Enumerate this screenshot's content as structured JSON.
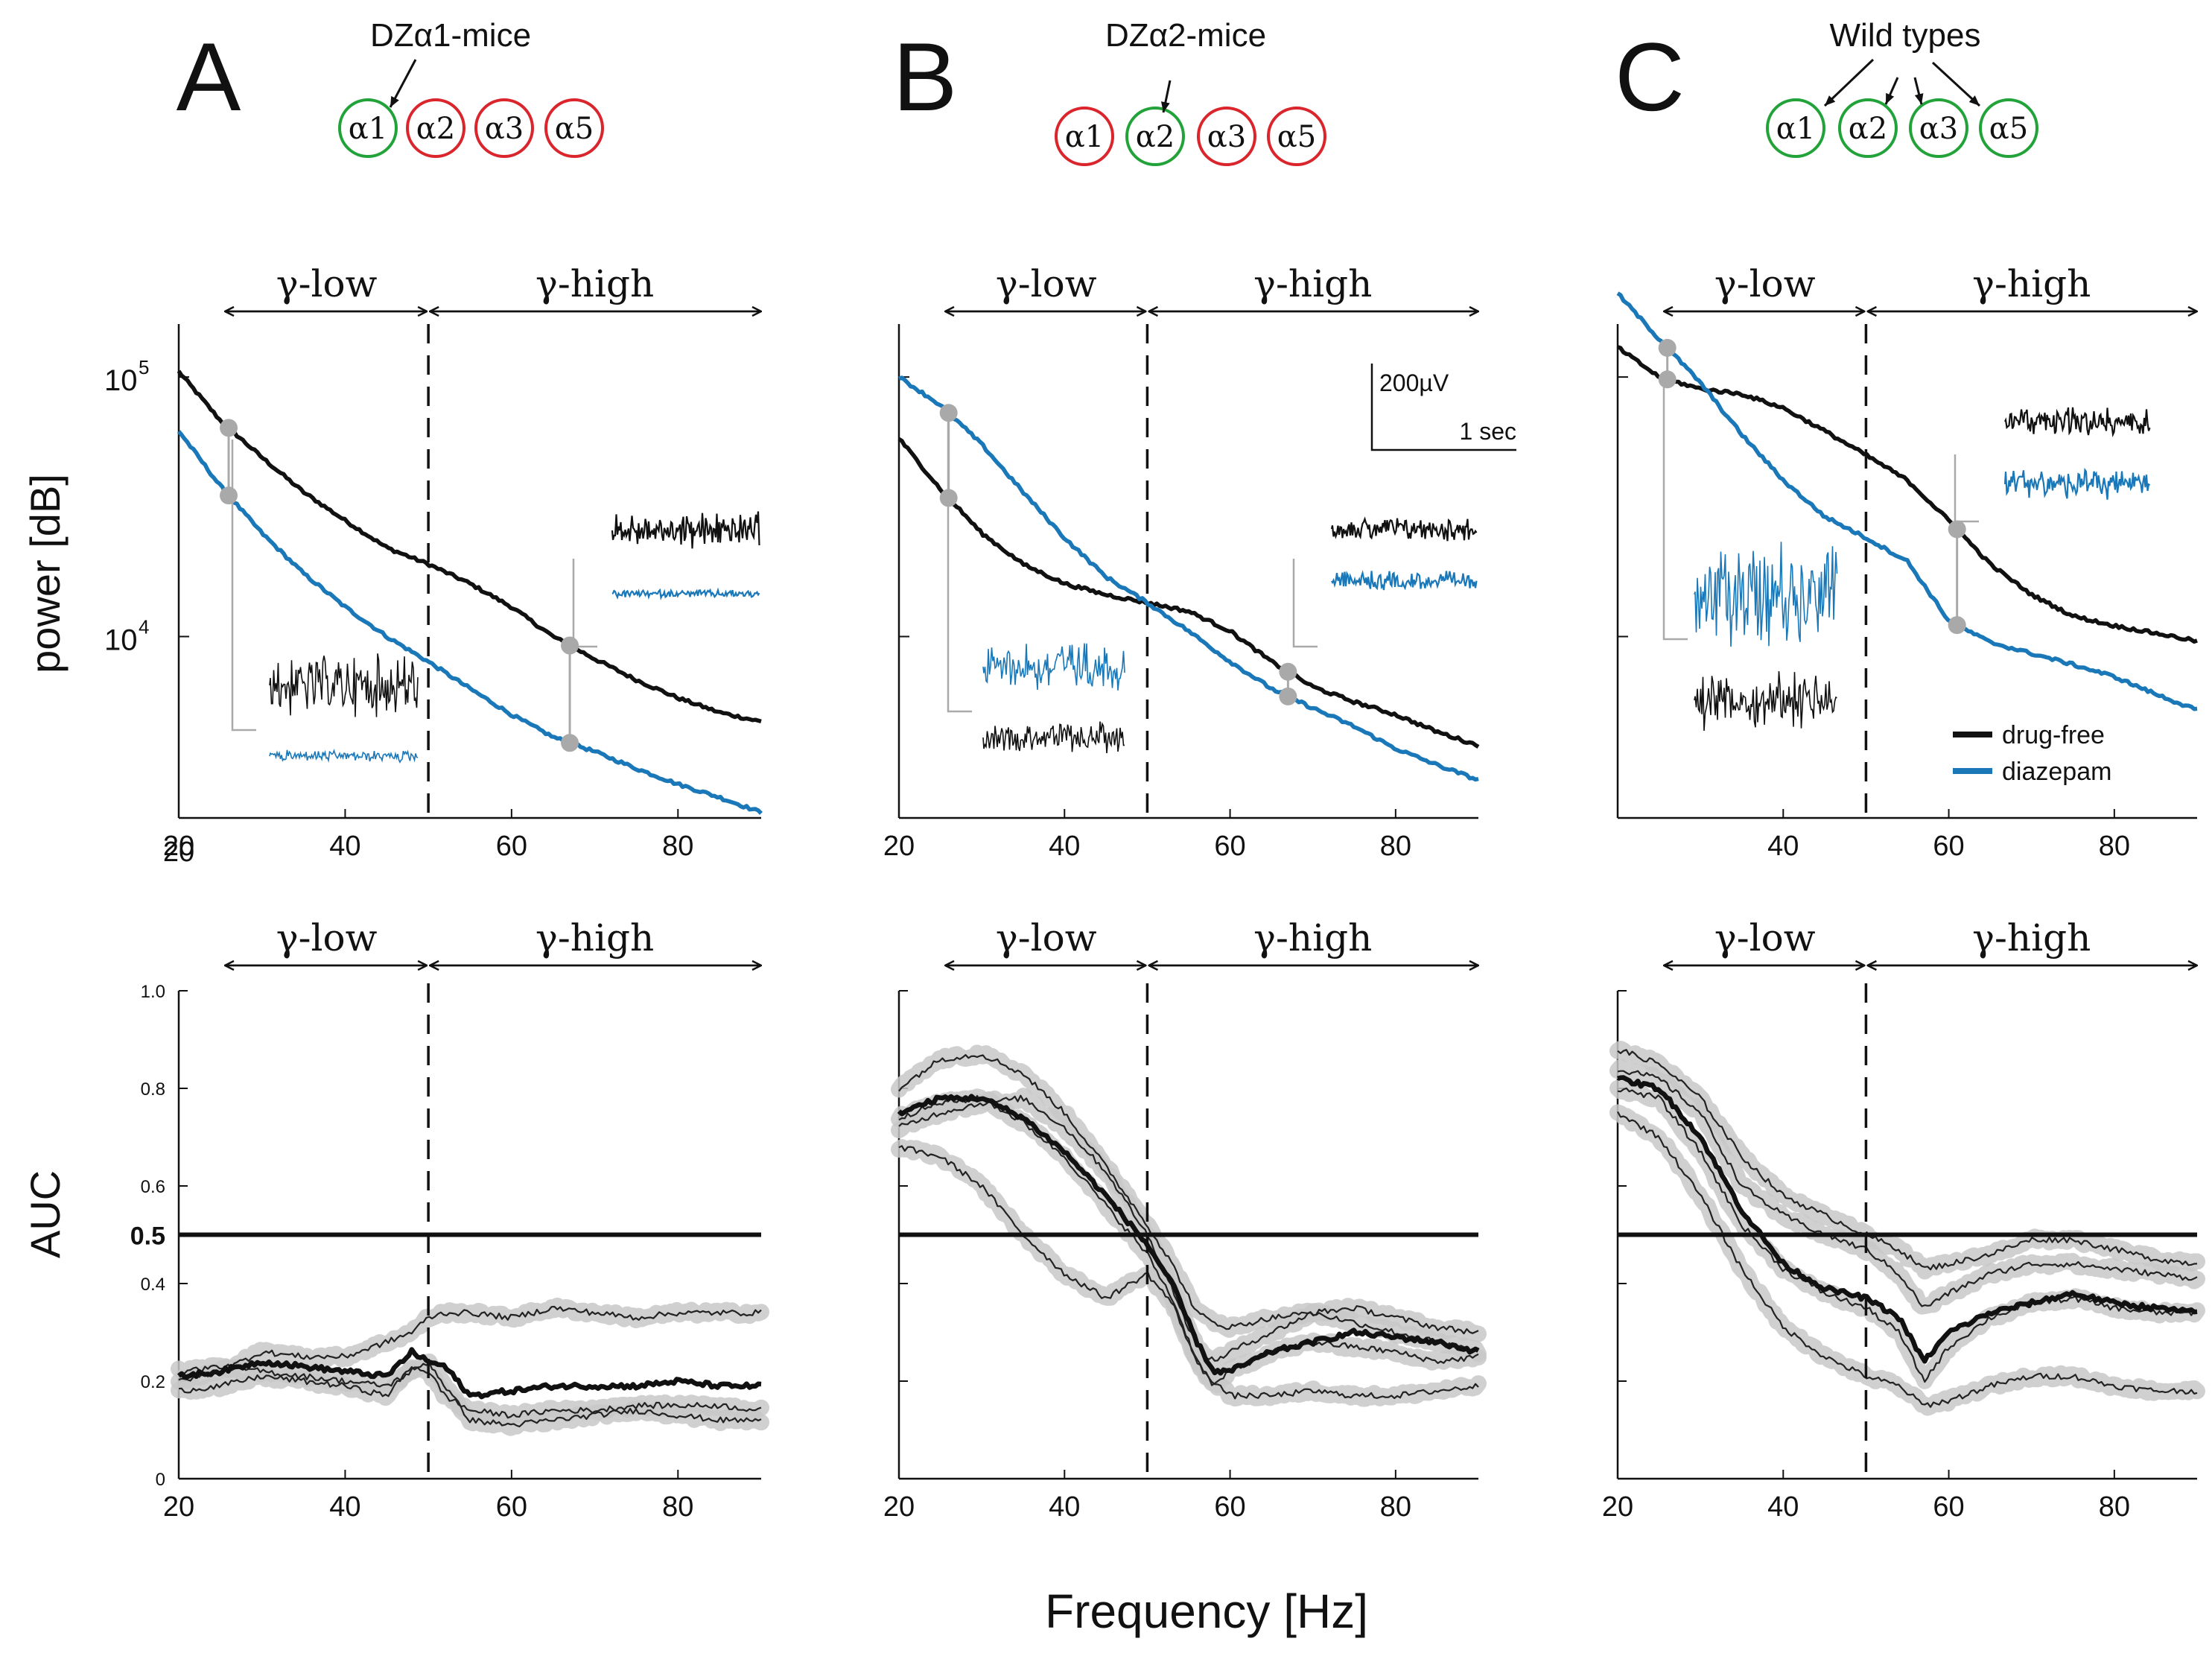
{
  "figure": {
    "xlabel": "Frequency [Hz]",
    "power_ylabel": "power [dB]",
    "auc_ylabel": "AUC",
    "band_low_label": "γ-low",
    "band_high_label": "γ-high",
    "auc_chance_label": "0.5",
    "stray_x_label": "20"
  },
  "legend": {
    "drug_free": "drug-free",
    "diazepam": "diazepam"
  },
  "colors": {
    "drug_free": "#111111",
    "diazepam": "#1a78b8",
    "sensitive": "#22a33a",
    "insensitive": "#d9252b",
    "marker": "#a9a9a9",
    "band": "#c8c8c8"
  },
  "scalebar": {
    "amplitude": "200µV",
    "time": "1 sec"
  },
  "panels": [
    {
      "letter": "A",
      "title": "DZα1-mice",
      "receptors": [
        {
          "label": "α1",
          "status": "sensitive"
        },
        {
          "label": "α2",
          "status": "insensitive"
        },
        {
          "label": "α3",
          "status": "insensitive"
        },
        {
          "label": "α5",
          "status": "insensitive"
        }
      ]
    },
    {
      "letter": "B",
      "title": "DZα2-mice",
      "receptors": [
        {
          "label": "α1",
          "status": "insensitive"
        },
        {
          "label": "α2",
          "status": "sensitive"
        },
        {
          "label": "α3",
          "status": "insensitive"
        },
        {
          "label": "α5",
          "status": "insensitive"
        }
      ]
    },
    {
      "letter": "C",
      "title": "Wild types",
      "receptors": [
        {
          "label": "α1",
          "status": "sensitive"
        },
        {
          "label": "α2",
          "status": "sensitive"
        },
        {
          "label": "α3",
          "status": "sensitive"
        },
        {
          "label": "α5",
          "status": "sensitive"
        }
      ]
    }
  ],
  "chart_data": [
    {
      "type": "line",
      "title": "A power spectrum",
      "xlabel": "Frequency [Hz]",
      "ylabel": "power [dB]",
      "xlim": [
        20,
        90
      ],
      "ylim": [
        2000,
        160000
      ],
      "yscale": "log",
      "x_ticks": [
        "20",
        "40",
        "60",
        "80"
      ],
      "y_ticks": [
        {
          "value": 100000,
          "base": "10",
          "exp": "5"
        },
        {
          "value": 10000,
          "base": "10",
          "exp": "4"
        }
      ],
      "band_boundary": 50,
      "marked_freqs": [
        26,
        67
      ],
      "series": [
        {
          "name": "drug-free",
          "x": [
            20,
            25,
            30,
            35,
            40,
            45,
            50,
            55,
            60,
            65,
            70,
            75,
            80,
            85,
            90
          ],
          "values": [
            105000,
            68000,
            49000,
            36000,
            28000,
            22000,
            19000,
            16000,
            13000,
            10000,
            8200,
            6800,
            5800,
            5100,
            4700
          ]
        },
        {
          "name": "diazepam",
          "x": [
            20,
            25,
            30,
            35,
            40,
            45,
            50,
            55,
            60,
            65,
            70,
            75,
            80,
            85,
            90
          ],
          "values": [
            62000,
            38000,
            25000,
            17500,
            13000,
            10000,
            8000,
            6300,
            5000,
            4100,
            3600,
            3100,
            2700,
            2400,
            2100
          ]
        }
      ]
    },
    {
      "type": "line",
      "title": "B power spectrum",
      "xlabel": "Frequency [Hz]",
      "ylabel": "power [dB]",
      "xlim": [
        20,
        90
      ],
      "ylim": [
        2000,
        160000
      ],
      "yscale": "log",
      "x_ticks": [
        "20",
        "40",
        "60",
        "80"
      ],
      "band_boundary": 50,
      "marked_freqs": [
        26,
        67
      ],
      "series": [
        {
          "name": "drug-free",
          "x": [
            20,
            25,
            30,
            35,
            40,
            45,
            50,
            55,
            60,
            65,
            70,
            75,
            80,
            85,
            90
          ],
          "values": [
            58000,
            37000,
            25000,
            19000,
            16000,
            14500,
            13500,
            12500,
            10500,
            8000,
            6400,
            5600,
            5000,
            4300,
            3800
          ]
        },
        {
          "name": "diazepam",
          "x": [
            20,
            25,
            30,
            35,
            40,
            45,
            50,
            55,
            60,
            65,
            70,
            75,
            80,
            85,
            90
          ],
          "values": [
            100000,
            78000,
            55000,
            36000,
            24000,
            17000,
            13500,
            10500,
            8000,
            6300,
            5300,
            4500,
            3700,
            3200,
            2800
          ]
        }
      ]
    },
    {
      "type": "line",
      "title": "C power spectrum",
      "xlabel": "Frequency [Hz]",
      "ylabel": "power [dB]",
      "xlim": [
        20,
        90
      ],
      "ylim": [
        2000,
        160000
      ],
      "yscale": "log",
      "x_ticks": [
        "40",
        "60",
        "80"
      ],
      "band_boundary": 50,
      "marked_freqs": [
        26,
        61
      ],
      "series": [
        {
          "name": "drug-free",
          "x": [
            20,
            25,
            30,
            35,
            40,
            45,
            50,
            55,
            60,
            65,
            70,
            75,
            80,
            85,
            90
          ],
          "values": [
            130000,
            100000,
            90000,
            86000,
            76000,
            62000,
            50000,
            40000,
            28000,
            19000,
            14500,
            12000,
            11000,
            10300,
            9600
          ]
        },
        {
          "name": "diazepam",
          "x": [
            20,
            25,
            30,
            35,
            40,
            45,
            50,
            55,
            60,
            65,
            70,
            75,
            80,
            85,
            90
          ],
          "values": [
            210000,
            140000,
            95000,
            60000,
            40000,
            29000,
            24000,
            19500,
            11500,
            9500,
            8600,
            7800,
            7000,
            6000,
            5200
          ]
        }
      ]
    },
    {
      "type": "line",
      "title": "A AUC",
      "xlabel": "Frequency [Hz]",
      "ylabel": "AUC",
      "xlim": [
        20,
        90
      ],
      "ylim": [
        0,
        1.0
      ],
      "x_ticks": [
        "20",
        "40",
        "60",
        "80"
      ],
      "y_ticks": [
        "0",
        "0.2",
        "0.4",
        "0.6",
        "0.8",
        "1.0"
      ],
      "chance_level": 0.5,
      "band_boundary": 50,
      "x": [
        20,
        25,
        30,
        35,
        40,
        45,
        48,
        50,
        52,
        55,
        60,
        65,
        70,
        75,
        80,
        85,
        90
      ],
      "mean": [
        0.21,
        0.22,
        0.24,
        0.23,
        0.22,
        0.21,
        0.26,
        0.24,
        0.23,
        0.17,
        0.18,
        0.19,
        0.19,
        0.19,
        0.2,
        0.19,
        0.19
      ],
      "individuals": [
        [
          0.2,
          0.22,
          0.26,
          0.25,
          0.25,
          0.28,
          0.3,
          0.33,
          0.34,
          0.34,
          0.33,
          0.35,
          0.34,
          0.33,
          0.34,
          0.34,
          0.34
        ],
        [
          0.22,
          0.23,
          0.22,
          0.21,
          0.2,
          0.19,
          0.22,
          0.24,
          0.19,
          0.12,
          0.11,
          0.12,
          0.13,
          0.14,
          0.13,
          0.12,
          0.12
        ],
        [
          0.18,
          0.19,
          0.21,
          0.2,
          0.19,
          0.17,
          0.23,
          0.22,
          0.17,
          0.14,
          0.13,
          0.14,
          0.14,
          0.15,
          0.15,
          0.15,
          0.14
        ]
      ]
    },
    {
      "type": "line",
      "title": "B AUC",
      "xlabel": "Frequency [Hz]",
      "ylabel": "AUC",
      "xlim": [
        20,
        90
      ],
      "ylim": [
        0,
        1.0
      ],
      "x_ticks": [
        "20",
        "40",
        "60",
        "80"
      ],
      "chance_level": 0.5,
      "band_boundary": 50,
      "x": [
        20,
        25,
        30,
        35,
        40,
        45,
        50,
        53,
        56,
        58,
        60,
        65,
        70,
        75,
        80,
        85,
        90
      ],
      "mean": [
        0.75,
        0.78,
        0.78,
        0.74,
        0.67,
        0.58,
        0.48,
        0.4,
        0.28,
        0.22,
        0.22,
        0.26,
        0.28,
        0.3,
        0.29,
        0.28,
        0.26
      ],
      "individuals": [
        [
          0.8,
          0.86,
          0.87,
          0.83,
          0.75,
          0.64,
          0.52,
          0.44,
          0.34,
          0.32,
          0.31,
          0.33,
          0.34,
          0.35,
          0.33,
          0.31,
          0.3
        ],
        [
          0.72,
          0.75,
          0.77,
          0.78,
          0.72,
          0.63,
          0.5,
          0.39,
          0.27,
          0.24,
          0.26,
          0.3,
          0.34,
          0.32,
          0.3,
          0.28,
          0.26
        ],
        [
          0.68,
          0.66,
          0.6,
          0.5,
          0.42,
          0.37,
          0.42,
          0.36,
          0.24,
          0.2,
          0.17,
          0.17,
          0.18,
          0.17,
          0.17,
          0.18,
          0.19
        ],
        [
          0.74,
          0.77,
          0.78,
          0.73,
          0.66,
          0.56,
          0.46,
          0.37,
          0.24,
          0.19,
          0.22,
          0.26,
          0.28,
          0.27,
          0.26,
          0.24,
          0.25
        ]
      ]
    },
    {
      "type": "line",
      "title": "C AUC",
      "xlabel": "Frequency [Hz]",
      "ylabel": "AUC",
      "xlim": [
        20,
        90
      ],
      "ylim": [
        0,
        1.0
      ],
      "x_ticks": [
        "20",
        "40",
        "60",
        "80"
      ],
      "chance_level": 0.5,
      "band_boundary": 50,
      "x": [
        20,
        25,
        30,
        35,
        40,
        45,
        50,
        54,
        57,
        60,
        65,
        70,
        75,
        80,
        85,
        90
      ],
      "mean": [
        0.82,
        0.8,
        0.7,
        0.55,
        0.44,
        0.39,
        0.37,
        0.33,
        0.24,
        0.3,
        0.34,
        0.36,
        0.38,
        0.36,
        0.35,
        0.34
      ],
      "individuals": [
        [
          0.88,
          0.85,
          0.78,
          0.66,
          0.58,
          0.54,
          0.5,
          0.47,
          0.43,
          0.44,
          0.46,
          0.49,
          0.49,
          0.47,
          0.45,
          0.44
        ],
        [
          0.84,
          0.82,
          0.75,
          0.6,
          0.54,
          0.5,
          0.47,
          0.42,
          0.35,
          0.38,
          0.42,
          0.44,
          0.44,
          0.43,
          0.42,
          0.41
        ],
        [
          0.8,
          0.78,
          0.67,
          0.52,
          0.43,
          0.38,
          0.35,
          0.3,
          0.2,
          0.27,
          0.33,
          0.36,
          0.37,
          0.35,
          0.34,
          0.34
        ],
        [
          0.75,
          0.7,
          0.58,
          0.43,
          0.31,
          0.25,
          0.21,
          0.19,
          0.15,
          0.16,
          0.19,
          0.21,
          0.21,
          0.19,
          0.18,
          0.18
        ]
      ]
    }
  ]
}
